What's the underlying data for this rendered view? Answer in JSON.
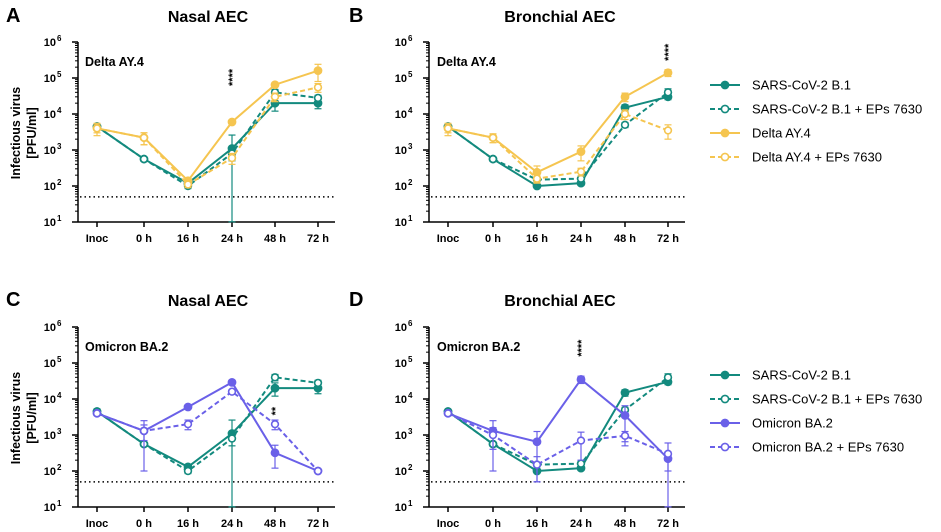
{
  "colors": {
    "teal": "#138a7e",
    "yellow": "#f5c550",
    "purple": "#6a60e8",
    "axis": "#000000"
  },
  "y_axis_label_line1": "Infectious virus",
  "y_axis_label_line2": "[PFU/ml]",
  "legend_top": [
    {
      "label": "SARS-CoV-2 B.1",
      "color": "#138a7e",
      "dashed": false,
      "filled": true
    },
    {
      "label": "SARS-CoV-2 B.1 + EPs 7630",
      "color": "#138a7e",
      "dashed": true,
      "filled": false
    },
    {
      "label": "Delta AY.4",
      "color": "#f5c550",
      "dashed": false,
      "filled": true
    },
    {
      "label": "Delta AY.4 + EPs 7630",
      "color": "#f5c550",
      "dashed": true,
      "filled": false
    }
  ],
  "legend_bottom": [
    {
      "label": "SARS-CoV-2 B.1",
      "color": "#138a7e",
      "dashed": false,
      "filled": true
    },
    {
      "label": "SARS-CoV-2 B.1 + EPs 7630",
      "color": "#138a7e",
      "dashed": true,
      "filled": false
    },
    {
      "label": "Omicron BA.2",
      "color": "#6a60e8",
      "dashed": false,
      "filled": true
    },
    {
      "label": "Omicron BA.2 + EPs 7630",
      "color": "#6a60e8",
      "dashed": true,
      "filled": false
    }
  ],
  "chart_data": [
    {
      "type": "line",
      "panel": "A",
      "title": "Nasal AEC",
      "variant_label": "Delta AY.4",
      "categories": [
        "Inoc",
        "0 h",
        "16 h",
        "24 h",
        "48 h",
        "72 h"
      ],
      "ytick_labels": [
        [
          "10",
          "1"
        ],
        [
          "10",
          "2"
        ],
        [
          "10",
          "3"
        ],
        [
          "10",
          "4"
        ],
        [
          "10",
          "5"
        ],
        [
          "10",
          "6"
        ]
      ],
      "yscale": "log",
      "ylim": [
        10,
        1000000
      ],
      "detection_limit": 50,
      "significance": [
        {
          "category_index": 3,
          "value": 60000,
          "text": "****"
        }
      ],
      "series": [
        {
          "name": "SARS-CoV-2 B.1",
          "color": "#138a7e",
          "dashed": false,
          "filled": true,
          "values": [
            4500,
            560,
            120,
            1100,
            20000,
            20000
          ],
          "errors": [
            800,
            60,
            15,
            1500,
            8000,
            6000
          ]
        },
        {
          "name": "SARS-CoV-2 B.1 + EPs 7630",
          "color": "#138a7e",
          "dashed": true,
          "filled": false,
          "values": [
            4500,
            560,
            100,
            800,
            40000,
            28000
          ],
          "errors": [
            500,
            50,
            15,
            300,
            8000,
            5000
          ]
        },
        {
          "name": "Delta AY.4",
          "color": "#f5c550",
          "dashed": false,
          "filled": true,
          "values": [
            4000,
            2200,
            140,
            6000,
            65000,
            160000
          ],
          "errors": [
            1500,
            800,
            30,
            800,
            8000,
            80000
          ]
        },
        {
          "name": "Delta AY.4 + EPs 7630",
          "color": "#f5c550",
          "dashed": true,
          "filled": false,
          "values": [
            4000,
            2200,
            110,
            600,
            30000,
            55000
          ],
          "errors": [
            1000,
            800,
            20,
            200,
            8000,
            15000
          ]
        }
      ]
    },
    {
      "type": "line",
      "panel": "B",
      "title": "Bronchial AEC",
      "variant_label": "Delta AY.4",
      "categories": [
        "Inoc",
        "0 h",
        "16 h",
        "24 h",
        "48 h",
        "72 h"
      ],
      "ytick_labels": [
        [
          "10",
          "1"
        ],
        [
          "10",
          "2"
        ],
        [
          "10",
          "3"
        ],
        [
          "10",
          "4"
        ],
        [
          "10",
          "5"
        ],
        [
          "10",
          "6"
        ]
      ],
      "yscale": "log",
      "ylim": [
        10,
        1000000
      ],
      "detection_limit": 50,
      "significance": [
        {
          "category_index": 5,
          "value": 300000,
          "text": "****"
        }
      ],
      "series": [
        {
          "name": "SARS-CoV-2 B.1",
          "color": "#138a7e",
          "dashed": false,
          "filled": true,
          "values": [
            4500,
            560,
            100,
            120,
            15000,
            30000
          ],
          "errors": [
            500,
            50,
            10,
            15,
            3000,
            5000
          ]
        },
        {
          "name": "SARS-CoV-2 B.1 + EPs 7630",
          "color": "#138a7e",
          "dashed": true,
          "filled": false,
          "values": [
            4500,
            560,
            150,
            160,
            5000,
            40000
          ],
          "errors": [
            500,
            50,
            20,
            30,
            800,
            10000
          ]
        },
        {
          "name": "Delta AY.4",
          "color": "#f5c550",
          "dashed": false,
          "filled": true,
          "values": [
            4000,
            2200,
            240,
            900,
            30000,
            140000
          ],
          "errors": [
            1500,
            600,
            120,
            400,
            8000,
            30000
          ]
        },
        {
          "name": "Delta AY.4 + EPs 7630",
          "color": "#f5c550",
          "dashed": true,
          "filled": false,
          "values": [
            4000,
            2200,
            160,
            250,
            10000,
            3500
          ],
          "errors": [
            1000,
            600,
            30,
            60,
            3000,
            1500
          ]
        }
      ]
    },
    {
      "type": "line",
      "panel": "C",
      "title": "Nasal AEC",
      "variant_label": "Omicron BA.2",
      "categories": [
        "Inoc",
        "0 h",
        "16 h",
        "24 h",
        "48 h",
        "72 h"
      ],
      "ytick_labels": [
        [
          "10",
          "1"
        ],
        [
          "10",
          "2"
        ],
        [
          "10",
          "3"
        ],
        [
          "10",
          "4"
        ],
        [
          "10",
          "5"
        ],
        [
          "10",
          "6"
        ]
      ],
      "yscale": "log",
      "ylim": [
        10,
        1000000
      ],
      "detection_limit": 50,
      "significance": [
        {
          "category_index": 4,
          "value": 3500,
          "text": "**"
        }
      ],
      "series": [
        {
          "name": "SARS-CoV-2 B.1",
          "color": "#138a7e",
          "dashed": false,
          "filled": true,
          "values": [
            4500,
            560,
            130,
            1100,
            20000,
            20000
          ],
          "errors": [
            800,
            60,
            15,
            1500,
            8000,
            6000
          ]
        },
        {
          "name": "SARS-CoV-2 B.1 + EPs 7630",
          "color": "#138a7e",
          "dashed": true,
          "filled": false,
          "values": [
            4500,
            560,
            100,
            800,
            40000,
            28000
          ],
          "errors": [
            500,
            50,
            15,
            300,
            8000,
            5000
          ]
        },
        {
          "name": "Omicron BA.2",
          "color": "#6a60e8",
          "dashed": false,
          "filled": true,
          "values": [
            4000,
            1300,
            6000,
            29000,
            320,
            100
          ],
          "errors": [
            500,
            1200,
            600,
            3000,
            200,
            10
          ]
        },
        {
          "name": "Omicron BA.2 + EPs 7630",
          "color": "#6a60e8",
          "dashed": true,
          "filled": false,
          "values": [
            4000,
            1300,
            2000,
            16000,
            2000,
            100
          ],
          "errors": [
            500,
            600,
            600,
            2000,
            600,
            10
          ]
        }
      ]
    },
    {
      "type": "line",
      "panel": "D",
      "title": "Bronchial AEC",
      "variant_label": "Omicron BA.2",
      "categories": [
        "Inoc",
        "0 h",
        "16 h",
        "24 h",
        "48 h",
        "72 h"
      ],
      "ytick_labels": [
        [
          "10",
          "1"
        ],
        [
          "10",
          "2"
        ],
        [
          "10",
          "3"
        ],
        [
          "10",
          "4"
        ],
        [
          "10",
          "5"
        ],
        [
          "10",
          "6"
        ]
      ],
      "yscale": "log",
      "ylim": [
        10,
        1000000
      ],
      "detection_limit": 50,
      "significance": [
        {
          "category_index": 3,
          "value": 150000,
          "text": "****"
        }
      ],
      "series": [
        {
          "name": "SARS-CoV-2 B.1",
          "color": "#138a7e",
          "dashed": false,
          "filled": true,
          "values": [
            4500,
            560,
            100,
            120,
            15000,
            30000
          ],
          "errors": [
            500,
            50,
            10,
            15,
            3000,
            5000
          ]
        },
        {
          "name": "SARS-CoV-2 B.1 + EPs 7630",
          "color": "#138a7e",
          "dashed": true,
          "filled": false,
          "values": [
            4500,
            560,
            150,
            160,
            5000,
            40000
          ],
          "errors": [
            500,
            50,
            20,
            30,
            800,
            10000
          ]
        },
        {
          "name": "Omicron BA.2",
          "color": "#6a60e8",
          "dashed": false,
          "filled": true,
          "values": [
            4000,
            1300,
            650,
            35000,
            3500,
            220
          ],
          "errors": [
            500,
            1200,
            600,
            8000,
            3000,
            120
          ]
        },
        {
          "name": "Omicron BA.2 + EPs 7630",
          "color": "#6a60e8",
          "dashed": true,
          "filled": false,
          "values": [
            4000,
            1000,
            150,
            700,
            950,
            300
          ],
          "errors": [
            500,
            600,
            100,
            500,
            300,
            300
          ]
        }
      ]
    }
  ]
}
